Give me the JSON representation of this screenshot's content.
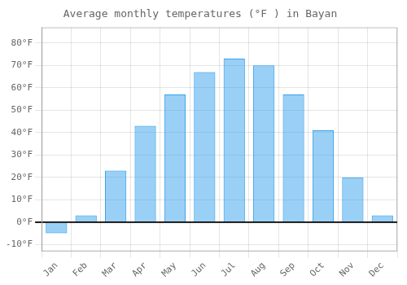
{
  "chart_data": {
    "type": "bar",
    "title": "Average monthly temperatures (°F ) in Bayan",
    "categories": [
      "Jan",
      "Feb",
      "Mar",
      "Apr",
      "May",
      "Jun",
      "Jul",
      "Aug",
      "Sep",
      "Oct",
      "Nov",
      "Dec"
    ],
    "values": [
      -5,
      3,
      23,
      43,
      57,
      67,
      73,
      70,
      57,
      41,
      20,
      3
    ],
    "ylim": [
      -13,
      87
    ],
    "yticks": [
      {
        "value": -10,
        "label": "-10°F"
      },
      {
        "value": 0,
        "label": "0°F"
      },
      {
        "value": 10,
        "label": "10°F"
      },
      {
        "value": 20,
        "label": "20°F"
      },
      {
        "value": 30,
        "label": "30°F"
      },
      {
        "value": 40,
        "label": "40°F"
      },
      {
        "value": 50,
        "label": "50°F"
      },
      {
        "value": 60,
        "label": "60°F"
      },
      {
        "value": 70,
        "label": "70°F"
      },
      {
        "value": 80,
        "label": "80°F"
      }
    ],
    "grid": true
  }
}
